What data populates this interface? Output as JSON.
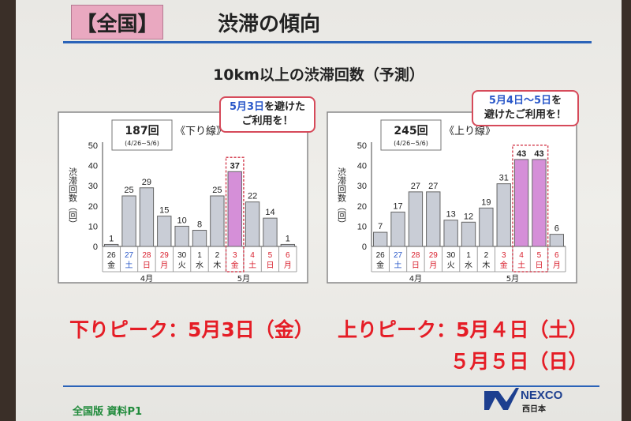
{
  "slide": {
    "badge": "【全国】",
    "title": "渋滞の傾向",
    "subtitle": "10km以上の渋滞回数（予測）",
    "footer": "全国版 資料P1",
    "logo_text": "NEXCO",
    "logo_sub": "西日本"
  },
  "peaks": {
    "down": "下りピーク：5月3日（金）",
    "up_line1": "上りピーク：5月４日（土）",
    "up_line2": "５月５日（日）"
  },
  "chart_data": [
    {
      "type": "bar",
      "direction_label": "《下り線》",
      "total_label": "187回",
      "range_label": "(4/26~5/6)",
      "ylabel": "渋滞回数（回）",
      "ylim": [
        0,
        50
      ],
      "yticks": [
        "0",
        "10",
        "20",
        "30",
        "40",
        "50"
      ],
      "day_labels": [
        "26",
        "27",
        "28",
        "29",
        "30",
        "1",
        "2",
        "3",
        "4",
        "5",
        "6"
      ],
      "weekday_labels": [
        "金",
        "土",
        "日",
        "月",
        "火",
        "水",
        "木",
        "金",
        "土",
        "日",
        "月"
      ],
      "values": [
        1,
        25,
        29,
        15,
        10,
        8,
        25,
        37,
        22,
        14,
        1
      ],
      "highlight": [
        7
      ],
      "month_labels": [
        "4月",
        "5月"
      ],
      "callout": {
        "highlight": "5月3日",
        "rest1": "を避けた",
        "line2": "ご利用を！"
      }
    },
    {
      "type": "bar",
      "direction_label": "《上り線》",
      "total_label": "245回",
      "range_label": "(4/26~5/6)",
      "ylabel": "渋滞回数（回）",
      "ylim": [
        0,
        50
      ],
      "yticks": [
        "0",
        "10",
        "20",
        "30",
        "40",
        "50"
      ],
      "day_labels": [
        "26",
        "27",
        "28",
        "29",
        "30",
        "1",
        "2",
        "3",
        "4",
        "5",
        "6"
      ],
      "weekday_labels": [
        "金",
        "土",
        "日",
        "月",
        "火",
        "水",
        "木",
        "金",
        "土",
        "日",
        "月"
      ],
      "values": [
        7,
        17,
        27,
        27,
        13,
        12,
        19,
        31,
        43,
        43,
        6
      ],
      "highlight": [
        8,
        9
      ],
      "month_labels": [
        "4月",
        "5月"
      ],
      "callout": {
        "highlight": "5月4日～5日",
        "rest1": "を",
        "line2": "避けたご利用を！"
      }
    }
  ],
  "colors": {
    "bar": "#c9cdd6",
    "bar_highlight": "#d58fd8",
    "saturday": "#2a58c9",
    "holiday": "#d81f2c",
    "weekday": "#222222",
    "accent_line": "#2b63b8",
    "peak_text": "#e51d26",
    "badge": "#e9a8c0"
  }
}
